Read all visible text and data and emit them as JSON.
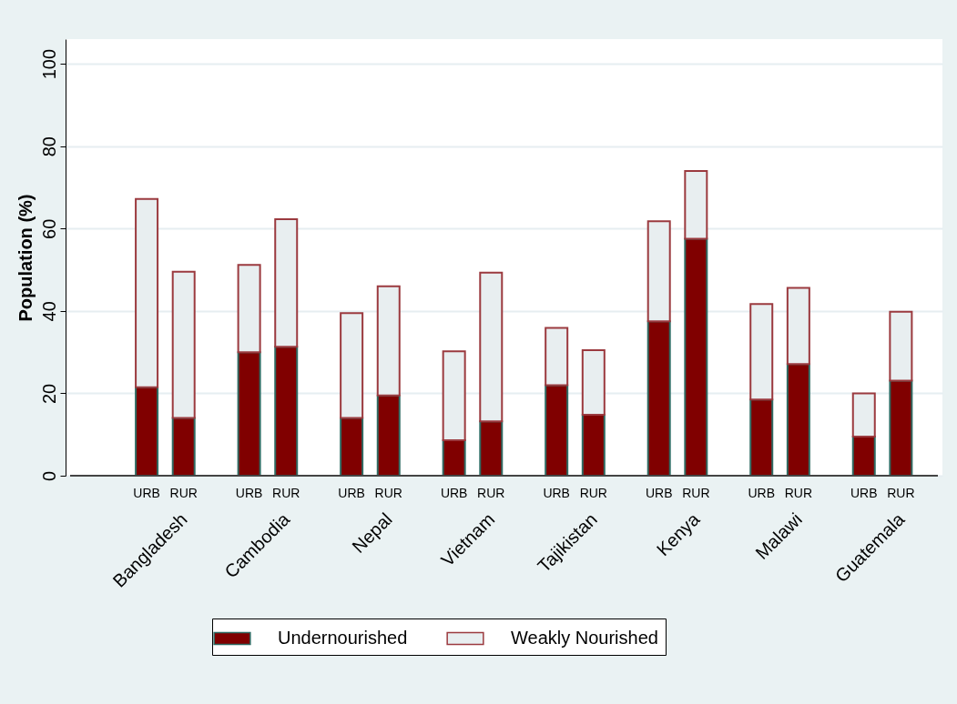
{
  "chart_data": {
    "type": "bar",
    "stacked": true,
    "ylabel": "Population (%)",
    "categories": [
      "URB",
      "RUR",
      "URB",
      "RUR",
      "URB",
      "RUR",
      "URB",
      "RUR",
      "URB",
      "RUR",
      "URB",
      "RUR",
      "URB",
      "RUR",
      "URB",
      "RUR"
    ],
    "series": [
      {
        "name": "Undernourished",
        "color": "#800000",
        "values": [
          21.5,
          14,
          30,
          31.3,
          14,
          19.5,
          8.6,
          13.2,
          22,
          14.8,
          37.5,
          57.5,
          18.5,
          27.1,
          9.5,
          23.1
        ]
      },
      {
        "name": "Weakly Nourished",
        "color": "#e8eef0",
        "values": [
          45.7,
          35.5,
          21.2,
          31,
          25.5,
          26.5,
          21.6,
          36.1,
          13.9,
          15.7,
          24.3,
          16.5,
          23.2,
          18.5,
          10.5,
          16.7
        ]
      }
    ],
    "annotations": [
      "Bangladesh",
      "Cambodia",
      "Nepal",
      "Vietnam",
      "Tajikistan",
      "Kenya",
      "Malawi",
      "Guatemala"
    ],
    "ylim": [
      0,
      106
    ],
    "yticks": [
      0,
      20,
      40,
      60,
      80,
      100
    ],
    "grid": "y",
    "legend": "bottom"
  }
}
